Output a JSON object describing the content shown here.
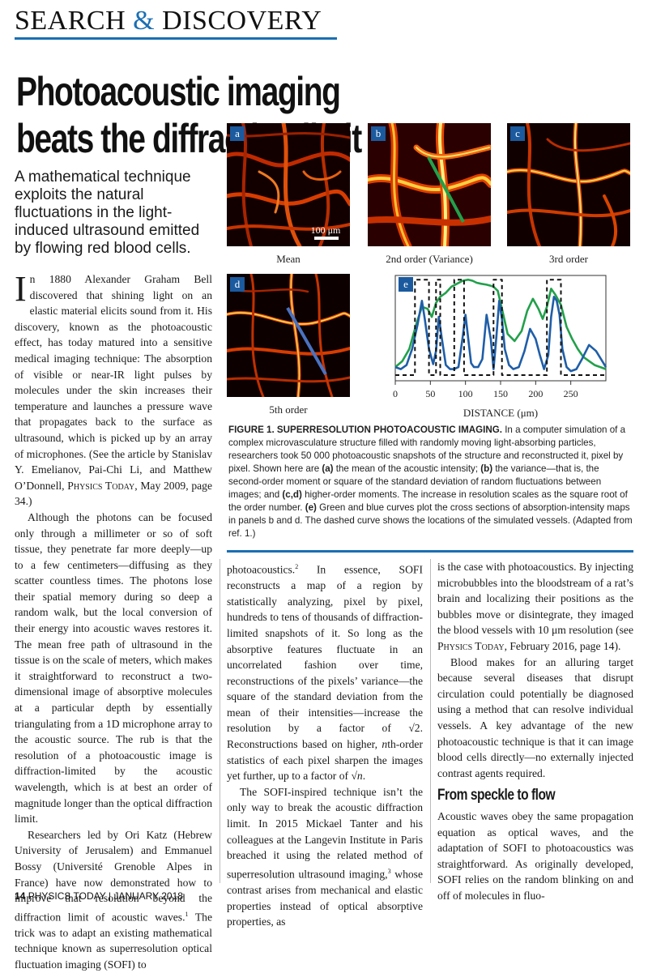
{
  "header": {
    "section_pre": "SEARCH ",
    "section_amp": "&",
    "section_post": " DISCOVERY"
  },
  "headline": "Photoacoustic imaging beats the diffraction limit",
  "deck": "A mathematical technique exploits the natural fluctuations in the light-induced ultrasound emitted by flowing red blood cells.",
  "colors": {
    "accent": "#1b6fb3",
    "green_curve": "#22a04b",
    "blue_curve": "#1f5ea8"
  },
  "figure": {
    "panels": [
      {
        "letter": "a",
        "label": "Mean",
        "scalebar": "100 μm"
      },
      {
        "letter": "b",
        "label": "2nd order (Variance)"
      },
      {
        "letter": "c",
        "label": "3rd order"
      },
      {
        "letter": "d",
        "label": "5th order"
      }
    ],
    "caption_title": "FIGURE 1. SUPERRESOLUTION PHOTOACOUSTIC IMAGING.",
    "caption_parts": {
      "p1": " In a computer simulation of a complex microvasculature structure filled with randomly moving light-absorbing particles, researchers took 50 000 photoacoustic snapshots of the structure and reconstructed it, pixel by pixel. Shown here are ",
      "a": "(a)",
      "p2": " the mean of the acoustic intensity; ",
      "b": "(b)",
      "p3": " the variance—that is, the second-order moment or square of the standard deviation of random fluctuations between images; and ",
      "cd": "(c,d)",
      "p4": " higher-order moments. The increase in resolution scales as the square root of the order number. ",
      "e": "(e)",
      "p5": " Green and blue curves plot the cross sections of absorption-intensity maps in panels b and d. The dashed curve shows the locations of the simulated vessels. (Adapted from ref. 1.)"
    }
  },
  "chart_data": {
    "type": "line",
    "panel_letter": "e",
    "xlabel": "DISTANCE (μm)",
    "xlim": [
      0,
      300
    ],
    "xticks": [
      "0",
      "50",
      "100",
      "150",
      "200",
      "250"
    ],
    "series": [
      {
        "name": "",
        "color": "#22a04b",
        "style": "solid",
        "x": [
          0,
          10,
          20,
          30,
          38,
          46,
          52,
          58,
          64,
          72,
          80,
          88,
          96,
          104,
          110,
          116,
          122,
          130,
          136,
          140,
          146,
          152,
          160,
          170,
          180,
          188,
          196,
          204,
          210,
          216,
          222,
          228,
          236,
          244,
          252,
          260,
          268,
          276,
          284,
          292,
          300
        ],
        "y": [
          0.12,
          0.18,
          0.3,
          0.55,
          0.72,
          0.7,
          0.62,
          0.76,
          0.82,
          0.86,
          0.92,
          0.95,
          0.98,
          0.99,
          0.98,
          0.96,
          0.95,
          0.94,
          0.93,
          0.92,
          0.88,
          0.7,
          0.45,
          0.38,
          0.48,
          0.68,
          0.8,
          0.7,
          0.6,
          0.72,
          0.9,
          0.84,
          0.74,
          0.52,
          0.4,
          0.3,
          0.22,
          0.18,
          0.14,
          0.12,
          0.1
        ]
      },
      {
        "name": "",
        "color": "#1f5ea8",
        "style": "solid",
        "x": [
          0,
          8,
          16,
          24,
          32,
          38,
          42,
          48,
          54,
          58,
          62,
          66,
          72,
          78,
          84,
          90,
          96,
          100,
          104,
          108,
          112,
          118,
          124,
          130,
          136,
          140,
          144,
          148,
          152,
          156,
          162,
          168,
          176,
          184,
          192,
          200,
          206,
          212,
          218,
          222,
          226,
          230,
          234,
          238,
          244,
          250,
          258,
          266,
          276,
          286,
          300
        ],
        "y": [
          0.12,
          0.1,
          0.14,
          0.3,
          0.55,
          0.78,
          0.6,
          0.3,
          0.15,
          0.28,
          0.62,
          0.42,
          0.14,
          0.1,
          0.1,
          0.12,
          0.42,
          0.64,
          0.4,
          0.16,
          0.12,
          0.12,
          0.2,
          0.64,
          0.4,
          0.1,
          0.42,
          0.78,
          0.6,
          0.3,
          0.14,
          0.1,
          0.12,
          0.28,
          0.5,
          0.4,
          0.24,
          0.1,
          0.24,
          0.62,
          0.82,
          0.78,
          0.64,
          0.3,
          0.12,
          0.08,
          0.1,
          0.2,
          0.34,
          0.28,
          0.12
        ]
      },
      {
        "name": "",
        "color": "#111111",
        "style": "dashed",
        "x": [
          0,
          28,
          28,
          48,
          48,
          58,
          58,
          64,
          64,
          84,
          84,
          98,
          98,
          140,
          140,
          152,
          152,
          216,
          216,
          236,
          236,
          300
        ],
        "y": [
          0.04,
          0.04,
          0.99,
          0.99,
          0.04,
          0.04,
          0.99,
          0.99,
          0.04,
          0.04,
          0.99,
          0.99,
          0.04,
          0.04,
          0.99,
          0.99,
          0.04,
          0.04,
          0.99,
          0.99,
          0.04,
          0.04
        ]
      }
    ],
    "cross_section_lines": {
      "b": "green",
      "d": "blue"
    }
  },
  "body": {
    "col1": {
      "dropcap": "I",
      "p1": "n 1880 Alexander Graham Bell discovered that shining light on an elastic material elicits sound from it. His discovery, known as the photoacoustic effect, has today matured into a sensitive medical imaging technique: The absorption of visible or near-IR light pulses by molecules under the skin increases their temperature and launches a pressure wave that propagates back to the surface as ultrasound, which is picked up by an array of microphones. (See the article by Stanislav Y. Emelianov, Pai-Chi Li, and Matthew O’Donnell, ",
      "p1_journal": "Physics Today",
      "p1_end": ", May 2009, page 34.)",
      "p2": "Although the photons can be focused only through a millimeter or so of soft tissue, they penetrate far more deeply—up to a few centimeters—diffusing as they scatter countless times. The photons lose their spatial memory during so deep a random walk, but the local conversion of their energy into acoustic waves restores it. The mean free path of ultrasound in the tissue is on the scale of meters, which makes it straightforward to reconstruct a two-dimensional image of absorptive molecules at a particular depth by essentially triangulating from a 1D microphone array to the acoustic source. The rub is that the resolution of a photoacoustic image is diffraction-limited by the acoustic wavelength, which is at best an order of magnitude longer than the optical diffraction limit.",
      "p3": "Researchers led by Ori Katz (Hebrew University of Jerusalem) and Emmanuel Bossy (Université Grenoble Alpes in France) have now demonstrated how to improve that resolution beyond the diffraction limit of acoustic waves.",
      "p3_sup": "1",
      "p3_end": " The trick was to adapt an existing mathematical technique known as superresolution optical fluctuation imaging (SOFI) to"
    },
    "col2": {
      "p1": "photoacoustics.",
      "p1_sup": "2",
      "p1_b": " In essence, SOFI reconstructs a map of a region by statistically analyzing, pixel by pixel, hundreds to tens of thousands of diffraction-limited snapshots of it. So long as the absorptive features fluctuate in an uncorrelated fashion over time, reconstructions of the pixels’ variance—the square of the standard deviation from the mean of their intensities—increase the resolution by a factor of √2. Reconstructions based on higher, ",
      "p1_n": "n",
      "p1_c": "th-order statistics of each pixel sharpen the images yet further, up to a factor of √",
      "p1_n2": "n",
      "p1_d": ".",
      "p2": "The SOFI-inspired technique isn’t the only way to break the acoustic diffraction limit. In 2015 Mickael Tanter and his colleagues at the Langevin Institute in Paris breached it using the related method of superresolution ultrasound imaging,",
      "p2_sup": "3",
      "p2_end": " whose contrast arises from mechanical and elastic properties instead of optical absorptive properties, as"
    },
    "col3": {
      "p1": "is the case with photoacoustics. By injecting microbubbles into the bloodstream of a rat’s brain and localizing their positions as the bubbles move or disintegrate, they imaged the blood vessels with 10 μm resolution (see ",
      "p1_journal": "Physics Today",
      "p1_end": ", February 2016, page 14).",
      "p2": "Blood makes for an alluring target because several diseases that disrupt circulation could potentially be diagnosed using a method that can resolve individual vessels. A key advantage of the new photoacoustic technique is that it can image blood cells directly—no externally injected contrast agents required.",
      "subhead": "From speckle to flow",
      "p3": "Acoustic waves obey the same propagation equation as optical waves, and the adaptation of SOFI to photoacoustics was straightforward. As originally developed, SOFI relies on the random blinking on and off of molecules in fluo-"
    }
  },
  "footer": {
    "page": "14",
    "journal": "PHYSICS TODAY",
    "sep": " | ",
    "date": "JANUARY 2018"
  }
}
